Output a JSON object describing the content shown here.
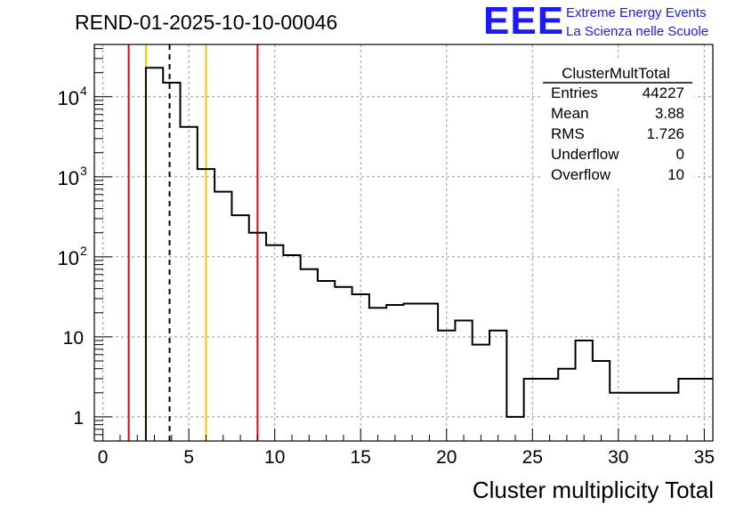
{
  "chart_data": {
    "type": "bar",
    "title": "REND-01-2025-10-10-00046",
    "xlabel": "Cluster multiplicity Total",
    "ylabel": "",
    "x_scale": "linear",
    "y_scale": "log",
    "xlim": [
      -0.5,
      35.5
    ],
    "ylim": [
      0.5,
      45000
    ],
    "x_ticks": [
      0,
      5,
      10,
      15,
      20,
      25,
      30,
      35
    ],
    "x_tick_labels": [
      "0",
      "5",
      "10",
      "15",
      "20",
      "25",
      "30",
      "35"
    ],
    "y_ticks": [
      1,
      10,
      100,
      1000,
      10000
    ],
    "y_tick_labels": [
      {
        "base": "1",
        "exp": ""
      },
      {
        "base": "10",
        "exp": ""
      },
      {
        "base": "10",
        "exp": "2"
      },
      {
        "base": "10",
        "exp": "3"
      },
      {
        "base": "10",
        "exp": "4"
      }
    ],
    "grid": true,
    "bin_width": 1,
    "bin_low_edges": [
      2.5,
      3.5,
      4.5,
      5.5,
      6.5,
      7.5,
      8.5,
      9.5,
      10.5,
      11.5,
      12.5,
      13.5,
      14.5,
      15.5,
      16.5,
      17.5,
      18.5,
      19.5,
      20.5,
      21.5,
      22.5,
      23.5,
      24.5,
      25.5,
      26.5,
      27.5,
      28.5,
      29.5,
      30.5,
      31.5,
      32.5,
      33.5,
      34.5
    ],
    "values": [
      23000,
      15000,
      4200,
      1250,
      650,
      330,
      200,
      140,
      105,
      70,
      50,
      42,
      34,
      23,
      25,
      26,
      26,
      12,
      16,
      8,
      12,
      1,
      3,
      3,
      4,
      9,
      5,
      2,
      2,
      2,
      2,
      3,
      3
    ],
    "vertical_lines": [
      {
        "x": 1.5,
        "color": "#e8000b",
        "style": "solid"
      },
      {
        "x": 2.5,
        "color": "#f7c600",
        "style": "solid"
      },
      {
        "x": 3.88,
        "color": "#000000",
        "style": "dashed"
      },
      {
        "x": 6.0,
        "color": "#f7c600",
        "style": "solid"
      },
      {
        "x": 9.0,
        "color": "#e8000b",
        "style": "solid"
      }
    ],
    "stats": {
      "name": "ClusterMultTotal",
      "rows": [
        {
          "label": "Entries",
          "value": "44227"
        },
        {
          "label": "Mean",
          "value": "3.88"
        },
        {
          "label": "RMS",
          "value": "1.726"
        },
        {
          "label": "Underflow",
          "value": "0"
        },
        {
          "label": "Overflow",
          "value": "10"
        }
      ]
    },
    "logo": {
      "text": "EEE",
      "line1": "Extreme Energy Events",
      "line2": "La Scienza nelle Scuole",
      "color": "#1a1aff"
    }
  }
}
